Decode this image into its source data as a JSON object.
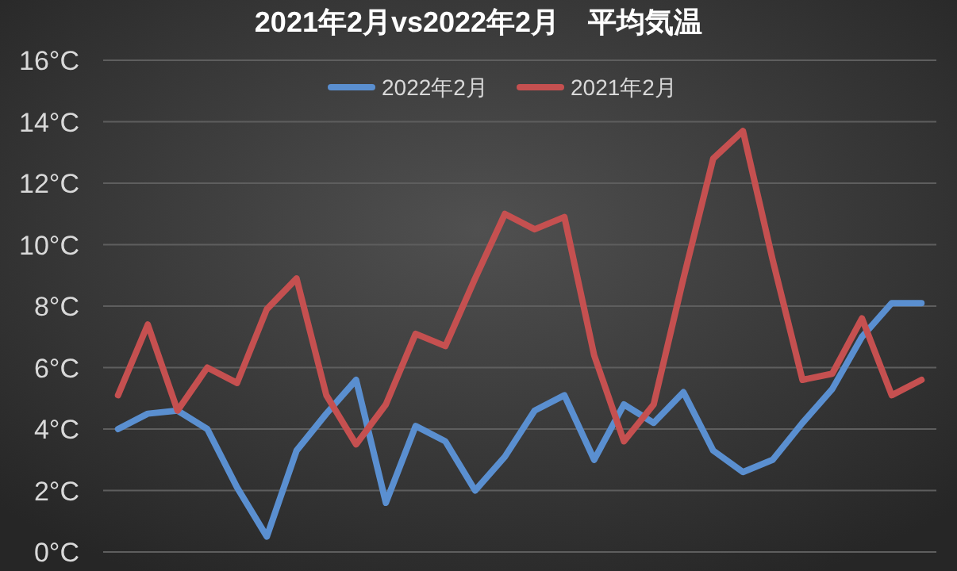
{
  "chart_data": {
    "type": "line",
    "title": "2021年2月vs2022年2月　平均気温",
    "categories": [
      null,
      null,
      null,
      null,
      null,
      null,
      null,
      null,
      null,
      null,
      null,
      null,
      null,
      null,
      null,
      null,
      null,
      null,
      null,
      null,
      null,
      null,
      null,
      null,
      null,
      null,
      null,
      null
    ],
    "series": [
      {
        "name": "2022年2月",
        "color": "#5a8fd0",
        "values": [
          4.0,
          4.5,
          4.6,
          4.0,
          2.1,
          0.5,
          3.3,
          4.5,
          5.6,
          1.6,
          4.1,
          3.6,
          2.0,
          3.1,
          4.6,
          5.1,
          3.0,
          4.8,
          4.2,
          5.2,
          3.3,
          2.6,
          3.0,
          4.2,
          5.3,
          7.0,
          8.1,
          8.1
        ]
      },
      {
        "name": "2021年2月",
        "color": "#c55050",
        "values": [
          5.1,
          7.4,
          4.6,
          6.0,
          5.5,
          7.9,
          8.9,
          5.1,
          3.5,
          4.8,
          7.1,
          6.7,
          8.9,
          11.0,
          10.5,
          10.9,
          6.4,
          3.6,
          4.8,
          8.9,
          12.8,
          13.7,
          9.5,
          5.6,
          5.8,
          7.6,
          5.1,
          5.6
        ]
      }
    ],
    "ylim": [
      0,
      16
    ],
    "yticks": [
      {
        "value": 0,
        "label": "0°C"
      },
      {
        "value": 2,
        "label": "2°C"
      },
      {
        "value": 4,
        "label": "4°C"
      },
      {
        "value": 6,
        "label": "6°C"
      },
      {
        "value": 8,
        "label": "8°C"
      },
      {
        "value": 10,
        "label": "10°C"
      },
      {
        "value": 12,
        "label": "12°C"
      },
      {
        "value": 14,
        "label": "14°C"
      },
      {
        "value": 16,
        "label": "16°C"
      }
    ],
    "grid": "y",
    "legend": "top",
    "marker": "none",
    "line_style": "solid"
  }
}
